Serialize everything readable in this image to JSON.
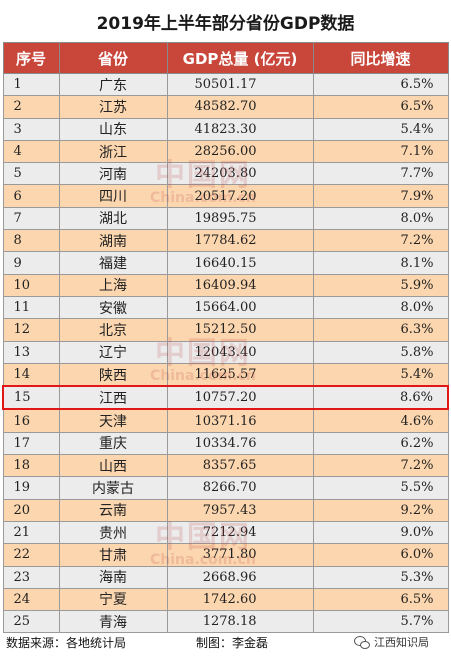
{
  "title": "2019年上半年部分省份GDP数据",
  "headers": [
    "序号",
    "省份",
    "GDP总量 (亿元)",
    "同比增速"
  ],
  "highlight_index": 15,
  "rows": [
    {
      "no": "1",
      "province": "广东",
      "gdp": "50501.17",
      "growth": "6.5%"
    },
    {
      "no": "2",
      "province": "江苏",
      "gdp": "48582.70",
      "growth": "6.5%"
    },
    {
      "no": "3",
      "province": "山东",
      "gdp": "41823.30",
      "growth": "5.4%"
    },
    {
      "no": "4",
      "province": "浙江",
      "gdp": "28256.00",
      "growth": "7.1%"
    },
    {
      "no": "5",
      "province": "河南",
      "gdp": "24203.80",
      "growth": "7.7%"
    },
    {
      "no": "6",
      "province": "四川",
      "gdp": "20517.20",
      "growth": "7.9%"
    },
    {
      "no": "7",
      "province": "湖北",
      "gdp": "19895.75",
      "growth": "8.0%"
    },
    {
      "no": "8",
      "province": "湖南",
      "gdp": "17784.62",
      "growth": "7.2%"
    },
    {
      "no": "9",
      "province": "福建",
      "gdp": "16640.15",
      "growth": "8.1%"
    },
    {
      "no": "10",
      "province": "上海",
      "gdp": "16409.94",
      "growth": "5.9%"
    },
    {
      "no": "11",
      "province": "安徽",
      "gdp": "15664.00",
      "growth": "8.0%"
    },
    {
      "no": "12",
      "province": "北京",
      "gdp": "15212.50",
      "growth": "6.3%"
    },
    {
      "no": "13",
      "province": "辽宁",
      "gdp": "12043.40",
      "growth": "5.8%"
    },
    {
      "no": "14",
      "province": "陕西",
      "gdp": "11625.57",
      "growth": "5.4%"
    },
    {
      "no": "15",
      "province": "江西",
      "gdp": "10757.20",
      "growth": "8.6%"
    },
    {
      "no": "16",
      "province": "天津",
      "gdp": "10371.16",
      "growth": "4.6%"
    },
    {
      "no": "17",
      "province": "重庆",
      "gdp": "10334.76",
      "growth": "6.2%"
    },
    {
      "no": "18",
      "province": "山西",
      "gdp": "8357.65",
      "growth": "7.2%"
    },
    {
      "no": "19",
      "province": "内蒙古",
      "gdp": "8266.70",
      "growth": "5.5%"
    },
    {
      "no": "20",
      "province": "云南",
      "gdp": "7957.43",
      "growth": "9.2%"
    },
    {
      "no": "21",
      "province": "贵州",
      "gdp": "7212.94",
      "growth": "9.0%"
    },
    {
      "no": "22",
      "province": "甘肃",
      "gdp": "3771.80",
      "growth": "6.0%"
    },
    {
      "no": "23",
      "province": "海南",
      "gdp": "2668.96",
      "growth": "5.3%"
    },
    {
      "no": "24",
      "province": "宁夏",
      "gdp": "1742.60",
      "growth": "6.5%"
    },
    {
      "no": "25",
      "province": "青海",
      "gdp": "1278.18",
      "growth": "5.7%"
    }
  ],
  "watermark": {
    "big": "中国网",
    "small": "China.com.cn"
  },
  "footer": {
    "source": "数据来源：各地统计局",
    "maker": "制图：李金磊",
    "brand": "江西知识局"
  },
  "colors": {
    "header_bg": "#c8463a",
    "row_odd": "#ececec",
    "row_even": "#fbd6ae",
    "highlight_border": "#e01818"
  }
}
